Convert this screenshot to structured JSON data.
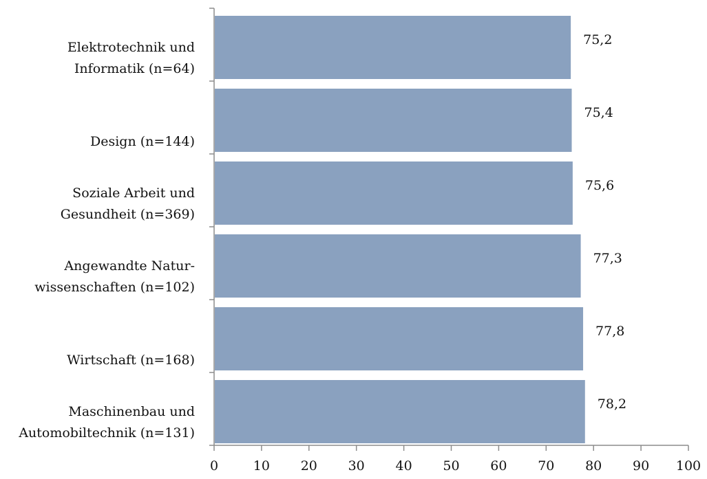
{
  "chart_data": {
    "type": "bar",
    "orientation": "horizontal",
    "categories": [
      [
        "Elektrotechnik und",
        "Informatik (n=64)"
      ],
      [
        "Design (n=144)"
      ],
      [
        "Soziale Arbeit und",
        "Gesundheit (n=369)"
      ],
      [
        "Angewandte Natur-",
        "wissenschaften (n=102)"
      ],
      [
        "Wirtschaft (n=168)"
      ],
      [
        "Maschinenbau und",
        "Automobiltechnik (n=131)"
      ]
    ],
    "values": [
      75.2,
      75.4,
      75.6,
      77.3,
      77.8,
      78.2
    ],
    "value_labels": [
      "75,2",
      "75,4",
      "75,6",
      "77,3",
      "77,8",
      "78,2"
    ],
    "xlim": [
      0,
      100
    ],
    "xticks": [
      0,
      10,
      20,
      30,
      40,
      50,
      60,
      70,
      80,
      90,
      100
    ],
    "xtick_labels": [
      "0",
      "10",
      "20",
      "30",
      "40",
      "50",
      "60",
      "70",
      "80",
      "90",
      "100"
    ],
    "title": "",
    "xlabel": "",
    "ylabel": "",
    "grid": false,
    "legend": "none",
    "colors": {
      "bar": "#8aa1bf",
      "axis": "#8c8c8c",
      "text": "#111111"
    }
  }
}
